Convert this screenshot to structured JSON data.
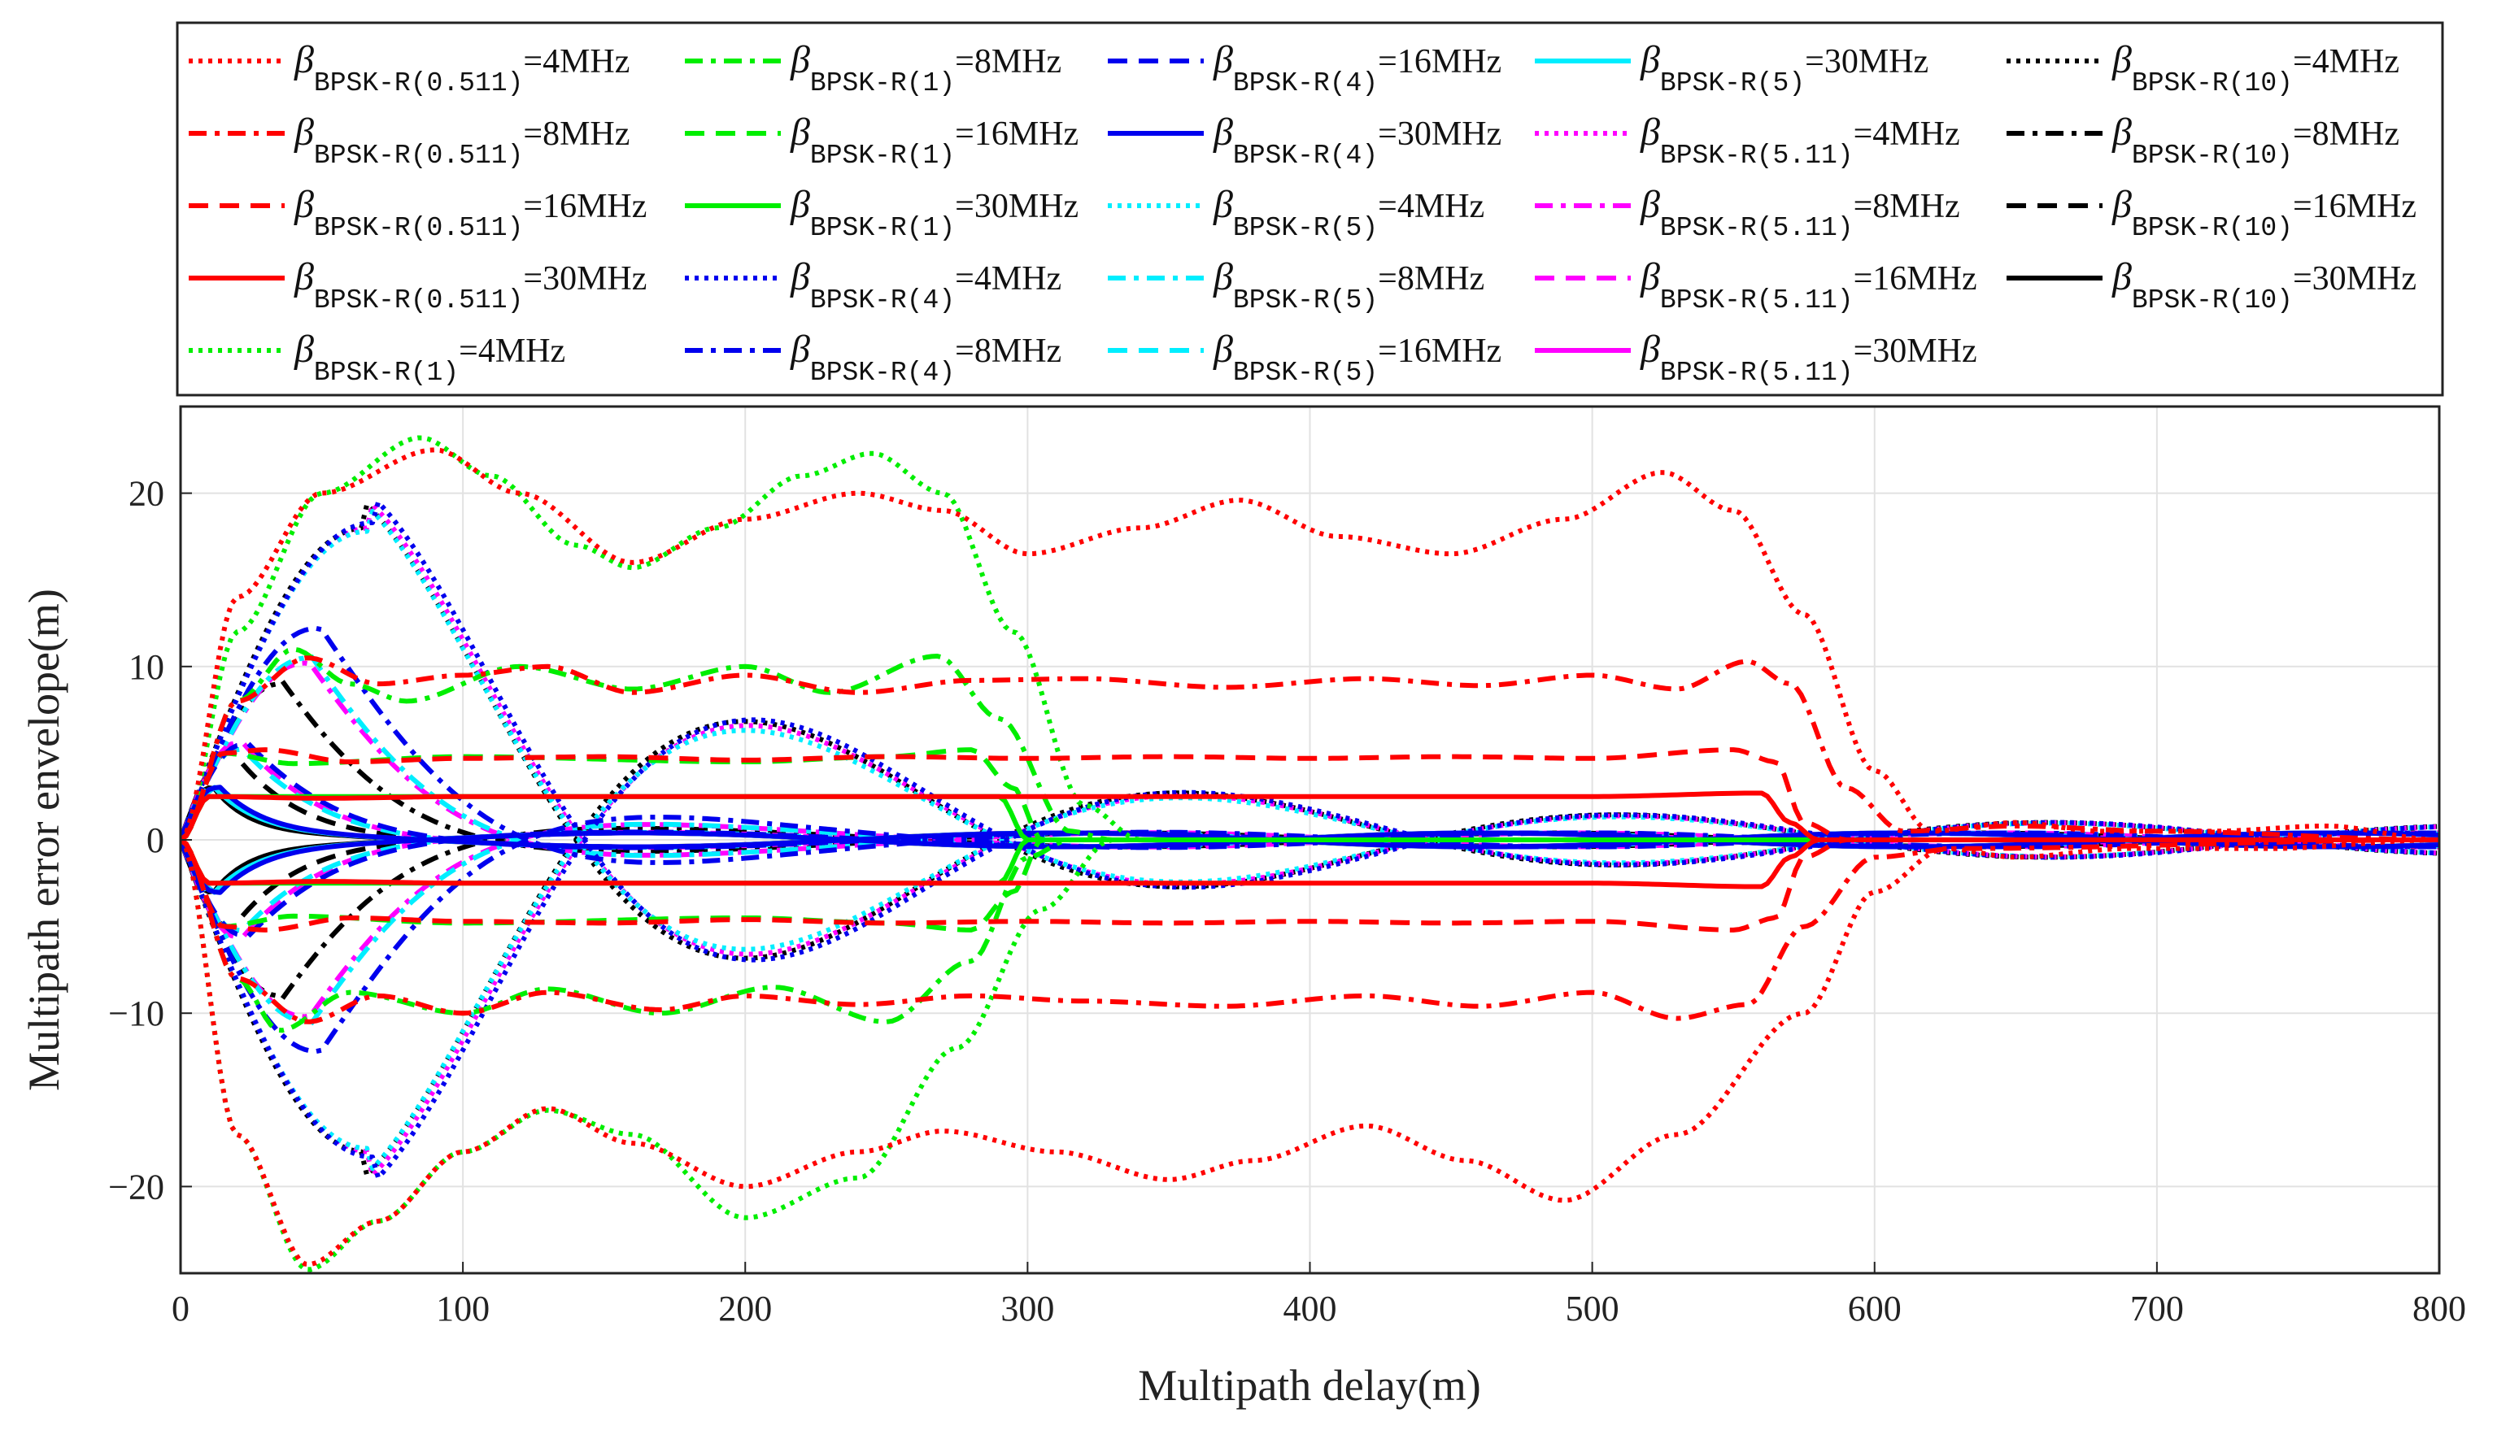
{
  "chart_data": {
    "type": "line",
    "title": "",
    "xlabel": "Multipath delay(m)",
    "ylabel": "Multipath error envelope(m)",
    "xlim": [
      0,
      800
    ],
    "ylim": [
      -25,
      25
    ],
    "xticks": [
      0,
      100,
      200,
      300,
      400,
      500,
      600,
      700,
      800
    ],
    "yticks": [
      -20,
      -10,
      0,
      10,
      20
    ],
    "grid": true,
    "legend_position": "top",
    "legend_symbol": "β",
    "legend_sub_prefix": "BPSK-R",
    "colors": {
      "0.511": "#ff0000",
      "1": "#00ee00",
      "4": "#0000ee",
      "5": "#00eeff",
      "5.11": "#ff00ff",
      "10": "#000000"
    },
    "series": [
      {
        "name": "β BPSK-R(0.511) =4MHz",
        "n": "0.511",
        "bw": "=4MHz",
        "style": "dotted",
        "upper": [
          [
            0,
            0
          ],
          [
            20,
            14
          ],
          [
            50,
            20
          ],
          [
            90,
            22.5
          ],
          [
            120,
            20
          ],
          [
            160,
            16
          ],
          [
            200,
            18.5
          ],
          [
            240,
            20
          ],
          [
            270,
            19
          ],
          [
            300,
            16.5
          ],
          [
            340,
            18
          ],
          [
            375,
            19.6
          ],
          [
            410,
            17.5
          ],
          [
            450,
            16.5
          ],
          [
            490,
            18.5
          ],
          [
            525,
            21.2
          ],
          [
            550,
            19
          ],
          [
            575,
            13
          ],
          [
            600,
            4
          ],
          [
            620,
            0.5
          ],
          [
            650,
            1
          ],
          [
            680,
            0.5
          ],
          [
            720,
            0.5
          ],
          [
            760,
            0.8
          ],
          [
            800,
            0
          ]
        ],
        "lower": [
          [
            0,
            0
          ],
          [
            20,
            -17
          ],
          [
            45,
            -24.5
          ],
          [
            70,
            -22
          ],
          [
            100,
            -18
          ],
          [
            130,
            -15.5
          ],
          [
            160,
            -17.5
          ],
          [
            200,
            -20
          ],
          [
            240,
            -18
          ],
          [
            270,
            -16.8
          ],
          [
            310,
            -18
          ],
          [
            350,
            -19.6
          ],
          [
            380,
            -18.5
          ],
          [
            420,
            -16.5
          ],
          [
            455,
            -18.5
          ],
          [
            490,
            -20.8
          ],
          [
            530,
            -17
          ],
          [
            575,
            -10
          ],
          [
            600,
            -3
          ],
          [
            625,
            -0.5
          ],
          [
            650,
            -1
          ],
          [
            690,
            -0.5
          ],
          [
            740,
            -0.5
          ],
          [
            800,
            0
          ]
        ]
      },
      {
        "name": "β BPSK-R(0.511) =8MHz",
        "n": "0.511",
        "bw": "=8MHz",
        "style": "dashdot",
        "upper": [
          [
            0,
            0
          ],
          [
            20,
            8
          ],
          [
            45,
            10.5
          ],
          [
            70,
            9
          ],
          [
            100,
            9.5
          ],
          [
            130,
            10
          ],
          [
            160,
            8.5
          ],
          [
            200,
            9.5
          ],
          [
            240,
            8.5
          ],
          [
            280,
            9.2
          ],
          [
            320,
            9.3
          ],
          [
            370,
            8.8
          ],
          [
            420,
            9.3
          ],
          [
            460,
            8.9
          ],
          [
            500,
            9.5
          ],
          [
            530,
            8.7
          ],
          [
            555,
            10.3
          ],
          [
            570,
            9
          ],
          [
            590,
            3
          ],
          [
            610,
            0.5
          ],
          [
            650,
            0.8
          ],
          [
            700,
            0.5
          ],
          [
            800,
            0
          ]
        ],
        "lower": [
          [
            0,
            0
          ],
          [
            20,
            -8
          ],
          [
            45,
            -10.5
          ],
          [
            70,
            -9
          ],
          [
            100,
            -10
          ],
          [
            130,
            -8.8
          ],
          [
            170,
            -9.8
          ],
          [
            200,
            -9
          ],
          [
            240,
            -9.5
          ],
          [
            280,
            -9
          ],
          [
            320,
            -9.3
          ],
          [
            370,
            -9.6
          ],
          [
            420,
            -9
          ],
          [
            460,
            -9.6
          ],
          [
            500,
            -8.8
          ],
          [
            530,
            -10.3
          ],
          [
            555,
            -9.5
          ],
          [
            575,
            -5
          ],
          [
            600,
            -1
          ],
          [
            630,
            -0.5
          ],
          [
            800,
            0
          ]
        ]
      },
      {
        "name": "β BPSK-R(0.511) =16MHz",
        "n": "0.511",
        "bw": "=16MHz",
        "style": "dashed",
        "upper": [
          [
            0,
            0
          ],
          [
            15,
            5
          ],
          [
            30,
            5.2
          ],
          [
            60,
            4.5
          ],
          [
            100,
            4.7
          ],
          [
            150,
            4.8
          ],
          [
            200,
            4.6
          ],
          [
            250,
            4.8
          ],
          [
            300,
            4.7
          ],
          [
            350,
            4.8
          ],
          [
            400,
            4.7
          ],
          [
            450,
            4.8
          ],
          [
            500,
            4.7
          ],
          [
            550,
            5.2
          ],
          [
            565,
            4.5
          ],
          [
            575,
            1
          ],
          [
            590,
            0
          ],
          [
            800,
            0
          ]
        ],
        "lower": [
          [
            0,
            0
          ],
          [
            15,
            -5
          ],
          [
            30,
            -5.2
          ],
          [
            60,
            -4.5
          ],
          [
            100,
            -4.7
          ],
          [
            150,
            -4.8
          ],
          [
            200,
            -4.6
          ],
          [
            250,
            -4.8
          ],
          [
            300,
            -4.7
          ],
          [
            350,
            -4.8
          ],
          [
            400,
            -4.7
          ],
          [
            450,
            -4.8
          ],
          [
            500,
            -4.7
          ],
          [
            550,
            -5.2
          ],
          [
            565,
            -4.5
          ],
          [
            575,
            -1
          ],
          [
            590,
            0
          ],
          [
            800,
            0
          ]
        ]
      },
      {
        "name": "β BPSK-R(0.511) =30MHz",
        "n": "0.511",
        "bw": "=30MHz",
        "style": "solid",
        "upper": [
          [
            0,
            0
          ],
          [
            10,
            2.5
          ],
          [
            50,
            2.4
          ],
          [
            100,
            2.5
          ],
          [
            200,
            2.5
          ],
          [
            300,
            2.5
          ],
          [
            400,
            2.5
          ],
          [
            500,
            2.5
          ],
          [
            560,
            2.7
          ],
          [
            570,
            1
          ],
          [
            580,
            0
          ],
          [
            800,
            0
          ]
        ],
        "lower": [
          [
            0,
            0
          ],
          [
            10,
            -2.5
          ],
          [
            50,
            -2.4
          ],
          [
            100,
            -2.5
          ],
          [
            200,
            -2.5
          ],
          [
            300,
            -2.5
          ],
          [
            400,
            -2.5
          ],
          [
            500,
            -2.5
          ],
          [
            560,
            -2.7
          ],
          [
            570,
            -1
          ],
          [
            580,
            0
          ],
          [
            800,
            0
          ]
        ]
      },
      {
        "name": "β BPSK-R(1) =4MHz",
        "n": "1",
        "bw": "=4MHz",
        "style": "dotted",
        "upper": [
          [
            0,
            0
          ],
          [
            20,
            12
          ],
          [
            50,
            20
          ],
          [
            85,
            23.2
          ],
          [
            110,
            21
          ],
          [
            140,
            17
          ],
          [
            160,
            15.7
          ],
          [
            190,
            18
          ],
          [
            220,
            21
          ],
          [
            245,
            22.3
          ],
          [
            270,
            20
          ],
          [
            295,
            12
          ],
          [
            320,
            2
          ],
          [
            340,
            0
          ],
          [
            800,
            0
          ]
        ],
        "lower": [
          [
            0,
            0
          ],
          [
            20,
            -17
          ],
          [
            45,
            -24.8
          ],
          [
            70,
            -22
          ],
          [
            100,
            -18
          ],
          [
            130,
            -15.6
          ],
          [
            160,
            -17
          ],
          [
            200,
            -21.8
          ],
          [
            240,
            -19.5
          ],
          [
            275,
            -12
          ],
          [
            305,
            -4
          ],
          [
            330,
            0
          ],
          [
            800,
            0
          ]
        ]
      },
      {
        "name": "β BPSK-R(1) =8MHz",
        "n": "1",
        "bw": "=8MHz",
        "style": "dashdot",
        "upper": [
          [
            0,
            0
          ],
          [
            20,
            8
          ],
          [
            40,
            11
          ],
          [
            60,
            9
          ],
          [
            80,
            8
          ],
          [
            120,
            10
          ],
          [
            160,
            8.7
          ],
          [
            200,
            10
          ],
          [
            230,
            8.5
          ],
          [
            268,
            10.6
          ],
          [
            290,
            7
          ],
          [
            315,
            0.5
          ],
          [
            330,
            0
          ],
          [
            800,
            0
          ]
        ],
        "lower": [
          [
            0,
            0
          ],
          [
            20,
            -8
          ],
          [
            35,
            -11
          ],
          [
            60,
            -8.8
          ],
          [
            100,
            -10
          ],
          [
            130,
            -8.6
          ],
          [
            170,
            -10
          ],
          [
            210,
            -8.5
          ],
          [
            250,
            -10.5
          ],
          [
            280,
            -7
          ],
          [
            300,
            -1
          ],
          [
            315,
            0
          ],
          [
            800,
            0
          ]
        ]
      },
      {
        "name": "β BPSK-R(1) =16MHz",
        "n": "1",
        "bw": "=16MHz",
        "style": "dashed",
        "upper": [
          [
            0,
            0
          ],
          [
            15,
            5
          ],
          [
            40,
            4.4
          ],
          [
            100,
            4.8
          ],
          [
            200,
            4.5
          ],
          [
            250,
            4.8
          ],
          [
            280,
            5.2
          ],
          [
            295,
            3
          ],
          [
            305,
            0
          ],
          [
            800,
            0
          ]
        ],
        "lower": [
          [
            0,
            0
          ],
          [
            15,
            -5
          ],
          [
            40,
            -4.4
          ],
          [
            100,
            -4.8
          ],
          [
            200,
            -4.5
          ],
          [
            250,
            -4.8
          ],
          [
            280,
            -5.2
          ],
          [
            295,
            -3
          ],
          [
            305,
            0
          ],
          [
            800,
            0
          ]
        ]
      },
      {
        "name": "β BPSK-R(1) =30MHz",
        "n": "1",
        "bw": "=30MHz",
        "style": "solid",
        "upper": [
          [
            0,
            0
          ],
          [
            10,
            2.5
          ],
          [
            100,
            2.5
          ],
          [
            200,
            2.5
          ],
          [
            290,
            2.5
          ],
          [
            300,
            0
          ],
          [
            800,
            0
          ]
        ],
        "lower": [
          [
            0,
            0
          ],
          [
            10,
            -2.5
          ],
          [
            100,
            -2.5
          ],
          [
            200,
            -2.5
          ],
          [
            290,
            -2.5
          ],
          [
            300,
            0
          ],
          [
            800,
            0
          ]
        ]
      },
      {
        "name": "β BPSK-R(4) =4MHz",
        "n": "4",
        "bw": "=4MHz",
        "style": "dotted",
        "amp": 18.3,
        "peak": 68,
        "decay": 0.0026
      },
      {
        "name": "β BPSK-R(4) =8MHz",
        "n": "4",
        "bw": "=8MHz",
        "style": "dashdot",
        "amp": 12.2,
        "peak": 48,
        "decay": 0.006
      },
      {
        "name": "β BPSK-R(4) =16MHz",
        "n": "4",
        "bw": "=16MHz",
        "style": "dashed",
        "amp": 5.5,
        "peak": 22,
        "decay": 0.01
      },
      {
        "name": "β BPSK-R(4) =30MHz",
        "n": "4",
        "bw": "=30MHz",
        "style": "solid",
        "amp": 3,
        "peak": 12,
        "decay": 0.02
      },
      {
        "name": "β BPSK-R(5) =4MHz",
        "n": "5",
        "bw": "=4MHz",
        "style": "dotted",
        "amp": 17.8,
        "peak": 66,
        "decay": 0.0028
      },
      {
        "name": "β BPSK-R(5) =8MHz",
        "n": "5",
        "bw": "=8MHz",
        "style": "dashdot",
        "amp": 10.5,
        "peak": 45,
        "decay": 0.007
      },
      {
        "name": "β BPSK-R(5) =16MHz",
        "n": "5",
        "bw": "=16MHz",
        "style": "dashed",
        "amp": 5.2,
        "peak": 20,
        "decay": 0.011
      },
      {
        "name": "β BPSK-R(5) =30MHz",
        "n": "5",
        "bw": "=30MHz",
        "style": "solid",
        "amp": 2.8,
        "peak": 11,
        "decay": 0.02
      },
      {
        "name": "β BPSK-R(5.11) =4MHz",
        "n": "5.11",
        "bw": "=4MHz",
        "style": "dotted",
        "amp": 18,
        "peak": 67,
        "decay": 0.0027
      },
      {
        "name": "β BPSK-R(5.11) =8MHz",
        "n": "5.11",
        "bw": "=8MHz",
        "style": "dashdot",
        "amp": 10.2,
        "peak": 44,
        "decay": 0.007
      },
      {
        "name": "β BPSK-R(5.11) =16MHz",
        "n": "5.11",
        "bw": "=16MHz",
        "style": "dashed",
        "amp": 5.6,
        "peak": 20,
        "decay": 0.011
      },
      {
        "name": "β BPSK-R(5.11) =30MHz",
        "n": "5.11",
        "bw": "=30MHz",
        "style": "solid",
        "amp": 2.8,
        "peak": 11,
        "decay": 0.02
      },
      {
        "name": "β BPSK-R(10) =4MHz",
        "n": "10",
        "bw": "=4MHz",
        "style": "dotted",
        "amp": 18,
        "peak": 65,
        "decay": 0.0026
      },
      {
        "name": "β BPSK-R(10) =8MHz",
        "n": "10",
        "bw": "=8MHz",
        "style": "dashdot",
        "amp": 9,
        "peak": 35,
        "decay": 0.008
      },
      {
        "name": "β BPSK-R(10) =16MHz",
        "n": "10",
        "bw": "=16MHz",
        "style": "dashed",
        "amp": 5,
        "peak": 17,
        "decay": 0.014
      },
      {
        "name": "β BPSK-R(10) =30MHz",
        "n": "10",
        "bw": "=30MHz",
        "style": "solid",
        "amp": 3,
        "peak": 10,
        "decay": 0.025
      }
    ]
  }
}
